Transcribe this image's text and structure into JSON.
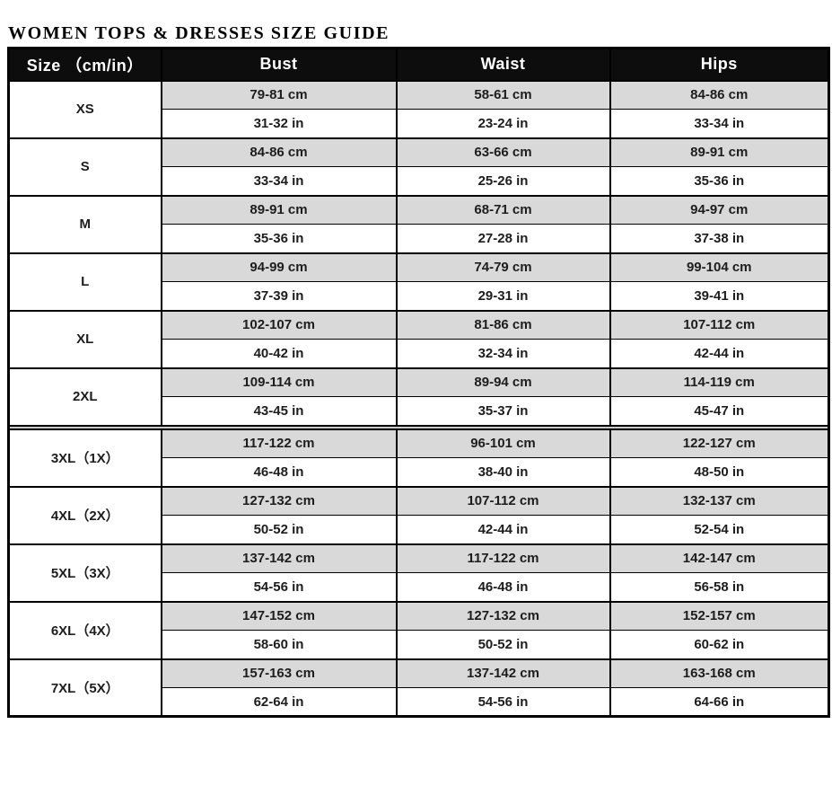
{
  "page_title": "WOMEN TOPS & DRESSES SIZE GUIDE",
  "table": {
    "columns": [
      "Size （cm/in）",
      "Bust",
      "Waist",
      "Hips"
    ],
    "groups": [
      {
        "name": "standard-sizes",
        "rows": [
          {
            "size": "XS",
            "bust": {
              "cm": "79-81 cm",
              "in": "31-32 in"
            },
            "waist": {
              "cm": "58-61 cm",
              "in": "23-24 in"
            },
            "hips": {
              "cm": "84-86 cm",
              "in": "33-34 in"
            }
          },
          {
            "size": "S",
            "bust": {
              "cm": "84-86 cm",
              "in": "33-34 in"
            },
            "waist": {
              "cm": "63-66 cm",
              "in": "25-26 in"
            },
            "hips": {
              "cm": "89-91 cm",
              "in": "35-36 in"
            }
          },
          {
            "size": "M",
            "bust": {
              "cm": "89-91 cm",
              "in": "35-36 in"
            },
            "waist": {
              "cm": "68-71 cm",
              "in": "27-28 in"
            },
            "hips": {
              "cm": "94-97 cm",
              "in": "37-38 in"
            }
          },
          {
            "size": "L",
            "bust": {
              "cm": "94-99 cm",
              "in": "37-39 in"
            },
            "waist": {
              "cm": "74-79 cm",
              "in": "29-31 in"
            },
            "hips": {
              "cm": "99-104 cm",
              "in": "39-41 in"
            }
          },
          {
            "size": "XL",
            "bust": {
              "cm": "102-107 cm",
              "in": "40-42 in"
            },
            "waist": {
              "cm": "81-86 cm",
              "in": "32-34 in"
            },
            "hips": {
              "cm": "107-112 cm",
              "in": "42-44 in"
            }
          },
          {
            "size": "2XL",
            "bust": {
              "cm": "109-114 cm",
              "in": "43-45 in"
            },
            "waist": {
              "cm": "89-94 cm",
              "in": "35-37 in"
            },
            "hips": {
              "cm": "114-119 cm",
              "in": "45-47 in"
            }
          }
        ]
      },
      {
        "name": "plus-sizes",
        "rows": [
          {
            "size": "3XL（1X）",
            "bust": {
              "cm": "117-122 cm",
              "in": "46-48 in"
            },
            "waist": {
              "cm": "96-101 cm",
              "in": "38-40 in"
            },
            "hips": {
              "cm": "122-127 cm",
              "in": "48-50 in"
            }
          },
          {
            "size": "4XL（2X）",
            "bust": {
              "cm": "127-132 cm",
              "in": "50-52 in"
            },
            "waist": {
              "cm": "107-112 cm",
              "in": "42-44 in"
            },
            "hips": {
              "cm": "132-137 cm",
              "in": "52-54 in"
            }
          },
          {
            "size": "5XL（3X）",
            "bust": {
              "cm": "137-142 cm",
              "in": "54-56 in"
            },
            "waist": {
              "cm": "117-122 cm",
              "in": "46-48 in"
            },
            "hips": {
              "cm": "142-147 cm",
              "in": "56-58 in"
            }
          },
          {
            "size": "6XL（4X）",
            "bust": {
              "cm": "147-152 cm",
              "in": "58-60 in"
            },
            "waist": {
              "cm": "127-132 cm",
              "in": "50-52 in"
            },
            "hips": {
              "cm": "152-157 cm",
              "in": "60-62 in"
            }
          },
          {
            "size": "7XL（5X）",
            "bust": {
              "cm": "157-163 cm",
              "in": "62-64 in"
            },
            "waist": {
              "cm": "137-142 cm",
              "in": "54-56 in"
            },
            "hips": {
              "cm": "163-168 cm",
              "in": "64-66 in"
            }
          }
        ]
      }
    ]
  },
  "colors": {
    "header_bg": "#0d0d0d",
    "header_text": "#ffffff",
    "cm_row_bg": "#d9d9d9",
    "in_row_bg": "#ffffff",
    "border": "#000000",
    "separator_fill": "#c9c9c9"
  }
}
